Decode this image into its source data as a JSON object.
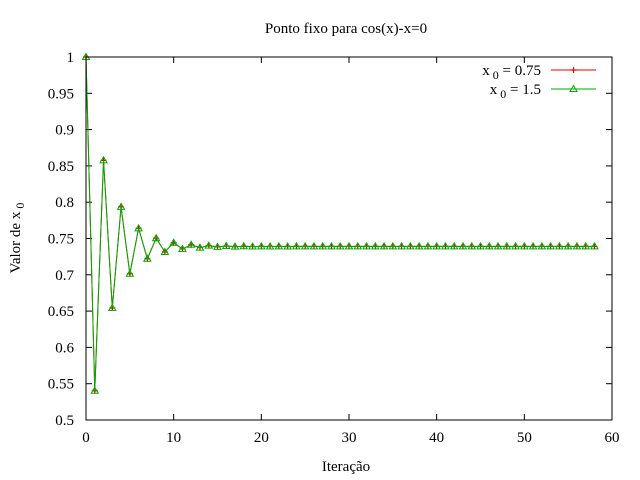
{
  "chart_data": {
    "type": "line",
    "title": "Ponto fixo para cos(x)-x=0",
    "xlabel": "Iteração",
    "ylabel": "Valor de x 0",
    "xlim": [
      0,
      60
    ],
    "ylim": [
      0.5,
      1
    ],
    "x_ticks": [
      "0",
      "10",
      "20",
      "30",
      "40",
      "50",
      "60"
    ],
    "y_ticks": [
      "0.5",
      "0.55",
      "0.6",
      "0.65",
      "0.7",
      "0.75",
      "0.8",
      "0.85",
      "0.9",
      "0.95",
      "1"
    ],
    "grid": false,
    "legend_position": "top-right",
    "series": [
      {
        "name": "x 0 = 0.75",
        "color": "#dd0000",
        "marker": "plus",
        "x": [
          0,
          1,
          2,
          3,
          4,
          5,
          6,
          7,
          8,
          9,
          10,
          11,
          12,
          13,
          14,
          15,
          16,
          17,
          18,
          19,
          20,
          21,
          22,
          23,
          24,
          25,
          26,
          27,
          28,
          29,
          30,
          31,
          32,
          33,
          34,
          35,
          36,
          37,
          38,
          39,
          40,
          41,
          42,
          43,
          44,
          45,
          46,
          47,
          48,
          49,
          50,
          51,
          52,
          53,
          54,
          55,
          56,
          57,
          58
        ],
        "values": [
          1.0,
          0.5403,
          0.8576,
          0.6543,
          0.7935,
          0.7014,
          0.764,
          0.7221,
          0.7504,
          0.7314,
          0.7442,
          0.7356,
          0.7414,
          0.7375,
          0.7401,
          0.7384,
          0.7396,
          0.7388,
          0.7393,
          0.7389,
          0.7392,
          0.739,
          0.7391,
          0.739,
          0.7391,
          0.7391,
          0.7391,
          0.7391,
          0.7391,
          0.7391,
          0.7391,
          0.7391,
          0.7391,
          0.7391,
          0.7391,
          0.7391,
          0.7391,
          0.7391,
          0.7391,
          0.7391,
          0.7391,
          0.7391,
          0.7391,
          0.7391,
          0.7391,
          0.7391,
          0.7391,
          0.7391,
          0.7391,
          0.7391,
          0.7391,
          0.7391,
          0.7391,
          0.7391,
          0.7391,
          0.7391,
          0.7391,
          0.7391,
          0.7391
        ]
      },
      {
        "name": "x 0 = 1.5",
        "color": "#00aa00",
        "marker": "triangle",
        "x": [
          0,
          1,
          2,
          3,
          4,
          5,
          6,
          7,
          8,
          9,
          10,
          11,
          12,
          13,
          14,
          15,
          16,
          17,
          18,
          19,
          20,
          21,
          22,
          23,
          24,
          25,
          26,
          27,
          28,
          29,
          30,
          31,
          32,
          33,
          34,
          35,
          36,
          37,
          38,
          39,
          40,
          41,
          42,
          43,
          44,
          45,
          46,
          47,
          48,
          49,
          50,
          51,
          52,
          53,
          54,
          55,
          56,
          57,
          58
        ],
        "values": [
          1.0,
          0.5403,
          0.8576,
          0.6543,
          0.7935,
          0.7014,
          0.764,
          0.7221,
          0.7504,
          0.7314,
          0.7442,
          0.7356,
          0.7414,
          0.7375,
          0.7401,
          0.7384,
          0.7396,
          0.7388,
          0.7393,
          0.7389,
          0.7392,
          0.739,
          0.7391,
          0.739,
          0.7391,
          0.7391,
          0.7391,
          0.7391,
          0.7391,
          0.7391,
          0.7391,
          0.7391,
          0.7391,
          0.7391,
          0.7391,
          0.7391,
          0.7391,
          0.7391,
          0.7391,
          0.7391,
          0.7391,
          0.7391,
          0.7391,
          0.7391,
          0.7391,
          0.7391,
          0.7391,
          0.7391,
          0.7391,
          0.7391,
          0.7391,
          0.7391,
          0.7391,
          0.7391,
          0.7391,
          0.7391,
          0.7391,
          0.7391,
          0.7391
        ]
      }
    ]
  }
}
